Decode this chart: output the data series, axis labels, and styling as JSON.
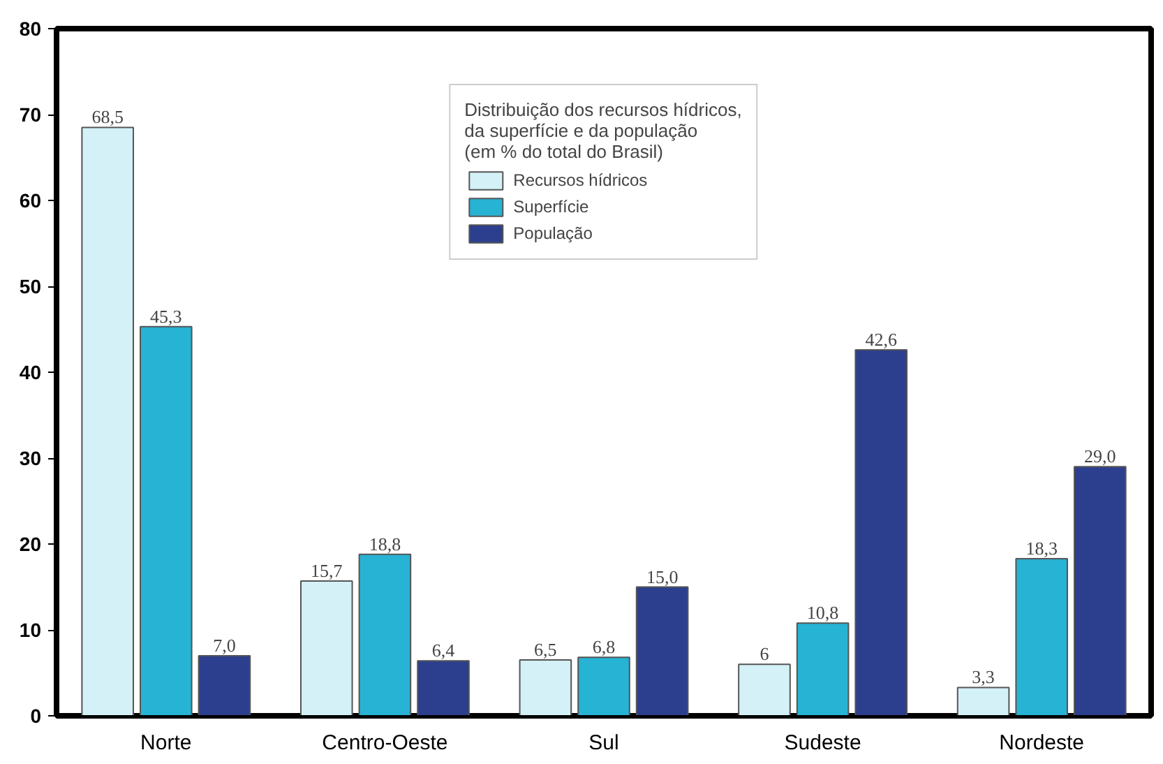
{
  "chart_data": {
    "type": "bar",
    "legend_title": "Distribuição dos recursos hídricos,\nda superfície e da população\n(em % do total do Brasil)",
    "categories": [
      "Norte",
      "Centro-Oeste",
      "Sul",
      "Sudeste",
      "Nordeste"
    ],
    "series": [
      {
        "name": "Recursos hídricos",
        "color": "#d4f1f8",
        "values": [
          68.5,
          15.7,
          6.5,
          6,
          3.3
        ],
        "value_labels": [
          "68,5",
          "15,7",
          "6,5",
          "6",
          "3,3"
        ]
      },
      {
        "name": "Superfície",
        "color": "#27b3d3",
        "values": [
          45.3,
          18.8,
          6.8,
          10.8,
          18.3
        ],
        "value_labels": [
          "45,3",
          "18,8",
          "6,8",
          "10,8",
          "18,3"
        ]
      },
      {
        "name": "População",
        "color": "#2c3f8e",
        "values": [
          7.0,
          6.4,
          15.0,
          42.6,
          29.0
        ],
        "value_labels": [
          "7,0",
          "6,4",
          "15,0",
          "42,6",
          "29,0"
        ]
      }
    ],
    "ylim": [
      0,
      80
    ],
    "yticks": [
      0,
      10,
      20,
      30,
      40,
      50,
      60,
      70,
      80
    ],
    "grid": false,
    "legend": "top"
  }
}
